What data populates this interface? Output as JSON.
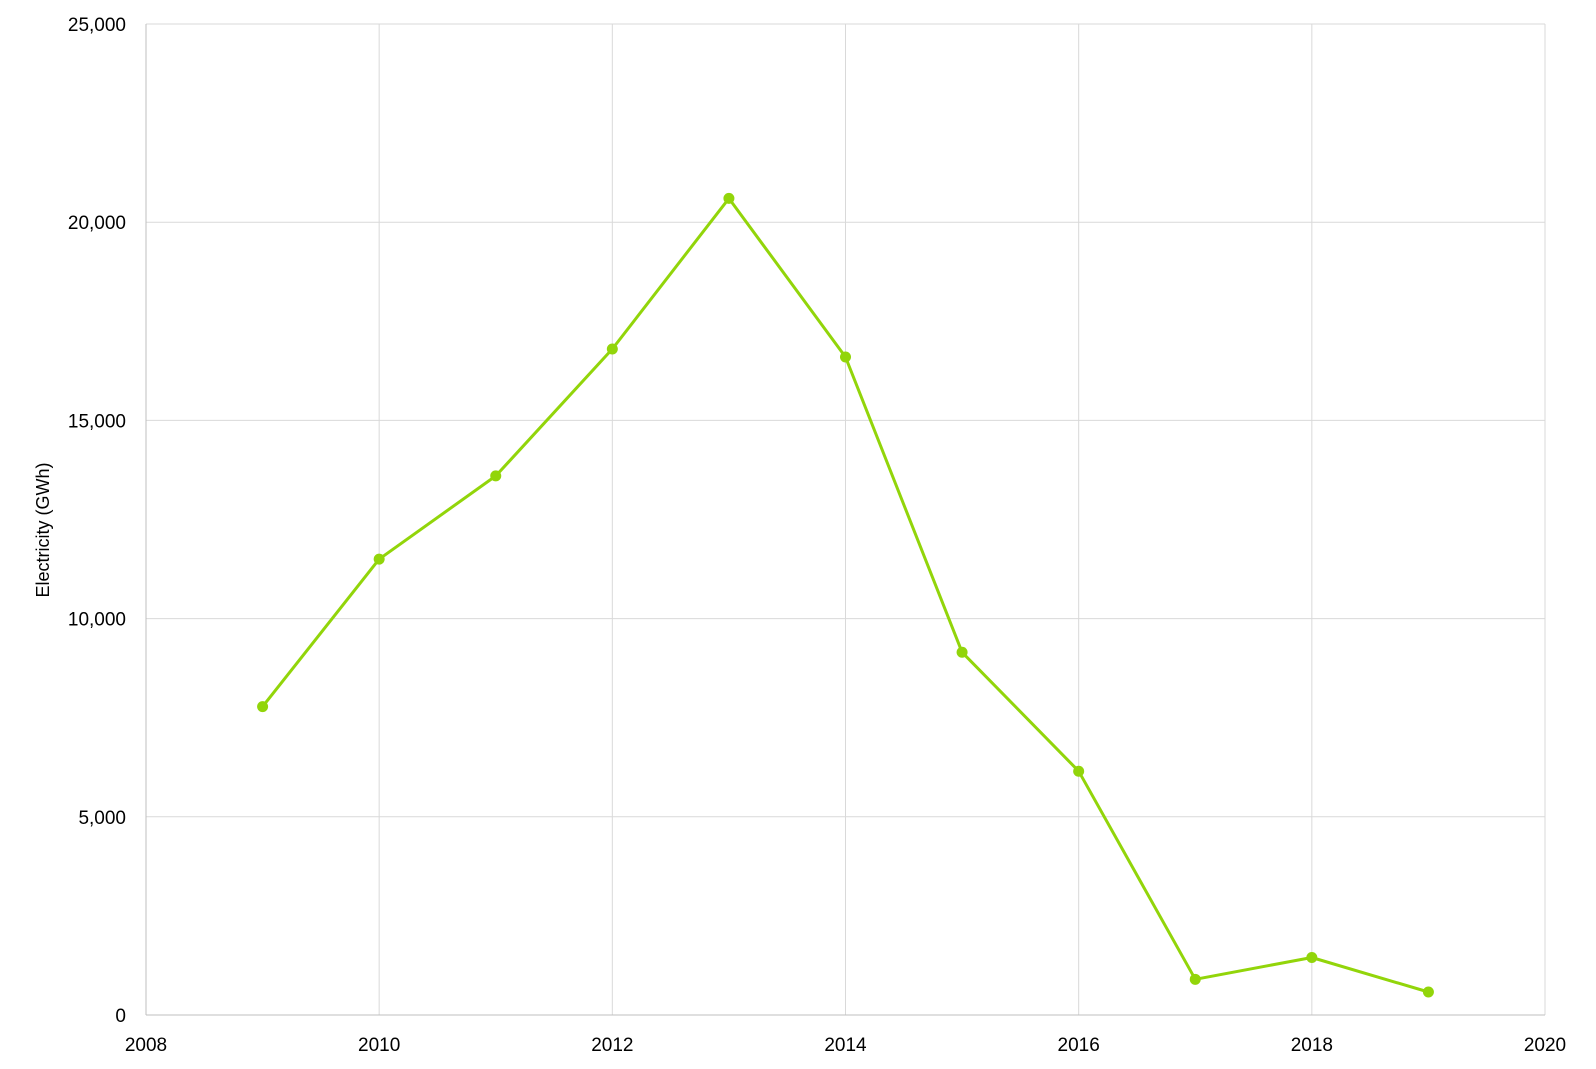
{
  "chart_data": {
    "type": "scatter",
    "mode": "lines+markers",
    "title": "",
    "xlabel": "",
    "ylabel": "Electricity (GWh)",
    "xlim": [
      2008,
      2020
    ],
    "ylim": [
      0,
      25000
    ],
    "x_ticks": [
      2008,
      2010,
      2012,
      2014,
      2016,
      2018,
      2020
    ],
    "y_ticks": [
      0,
      5000,
      10000,
      15000,
      20000,
      25000
    ],
    "x_tick_labels": [
      "2008",
      "2010",
      "2012",
      "2014",
      "2016",
      "2018",
      "2020"
    ],
    "y_tick_labels": [
      "0",
      "5,000",
      "10,000",
      "15,000",
      "20,000",
      "25,000"
    ],
    "grid": true,
    "legend": "none",
    "series": [
      {
        "color": "#92d50a",
        "x": [
          2009,
          2010,
          2011,
          2012,
          2013,
          2014,
          2015,
          2016,
          2017,
          2018,
          2019
        ],
        "y": [
          7780,
          11500,
          13600,
          16800,
          20600,
          16600,
          9150,
          6150,
          900,
          1450,
          580
        ]
      }
    ]
  }
}
